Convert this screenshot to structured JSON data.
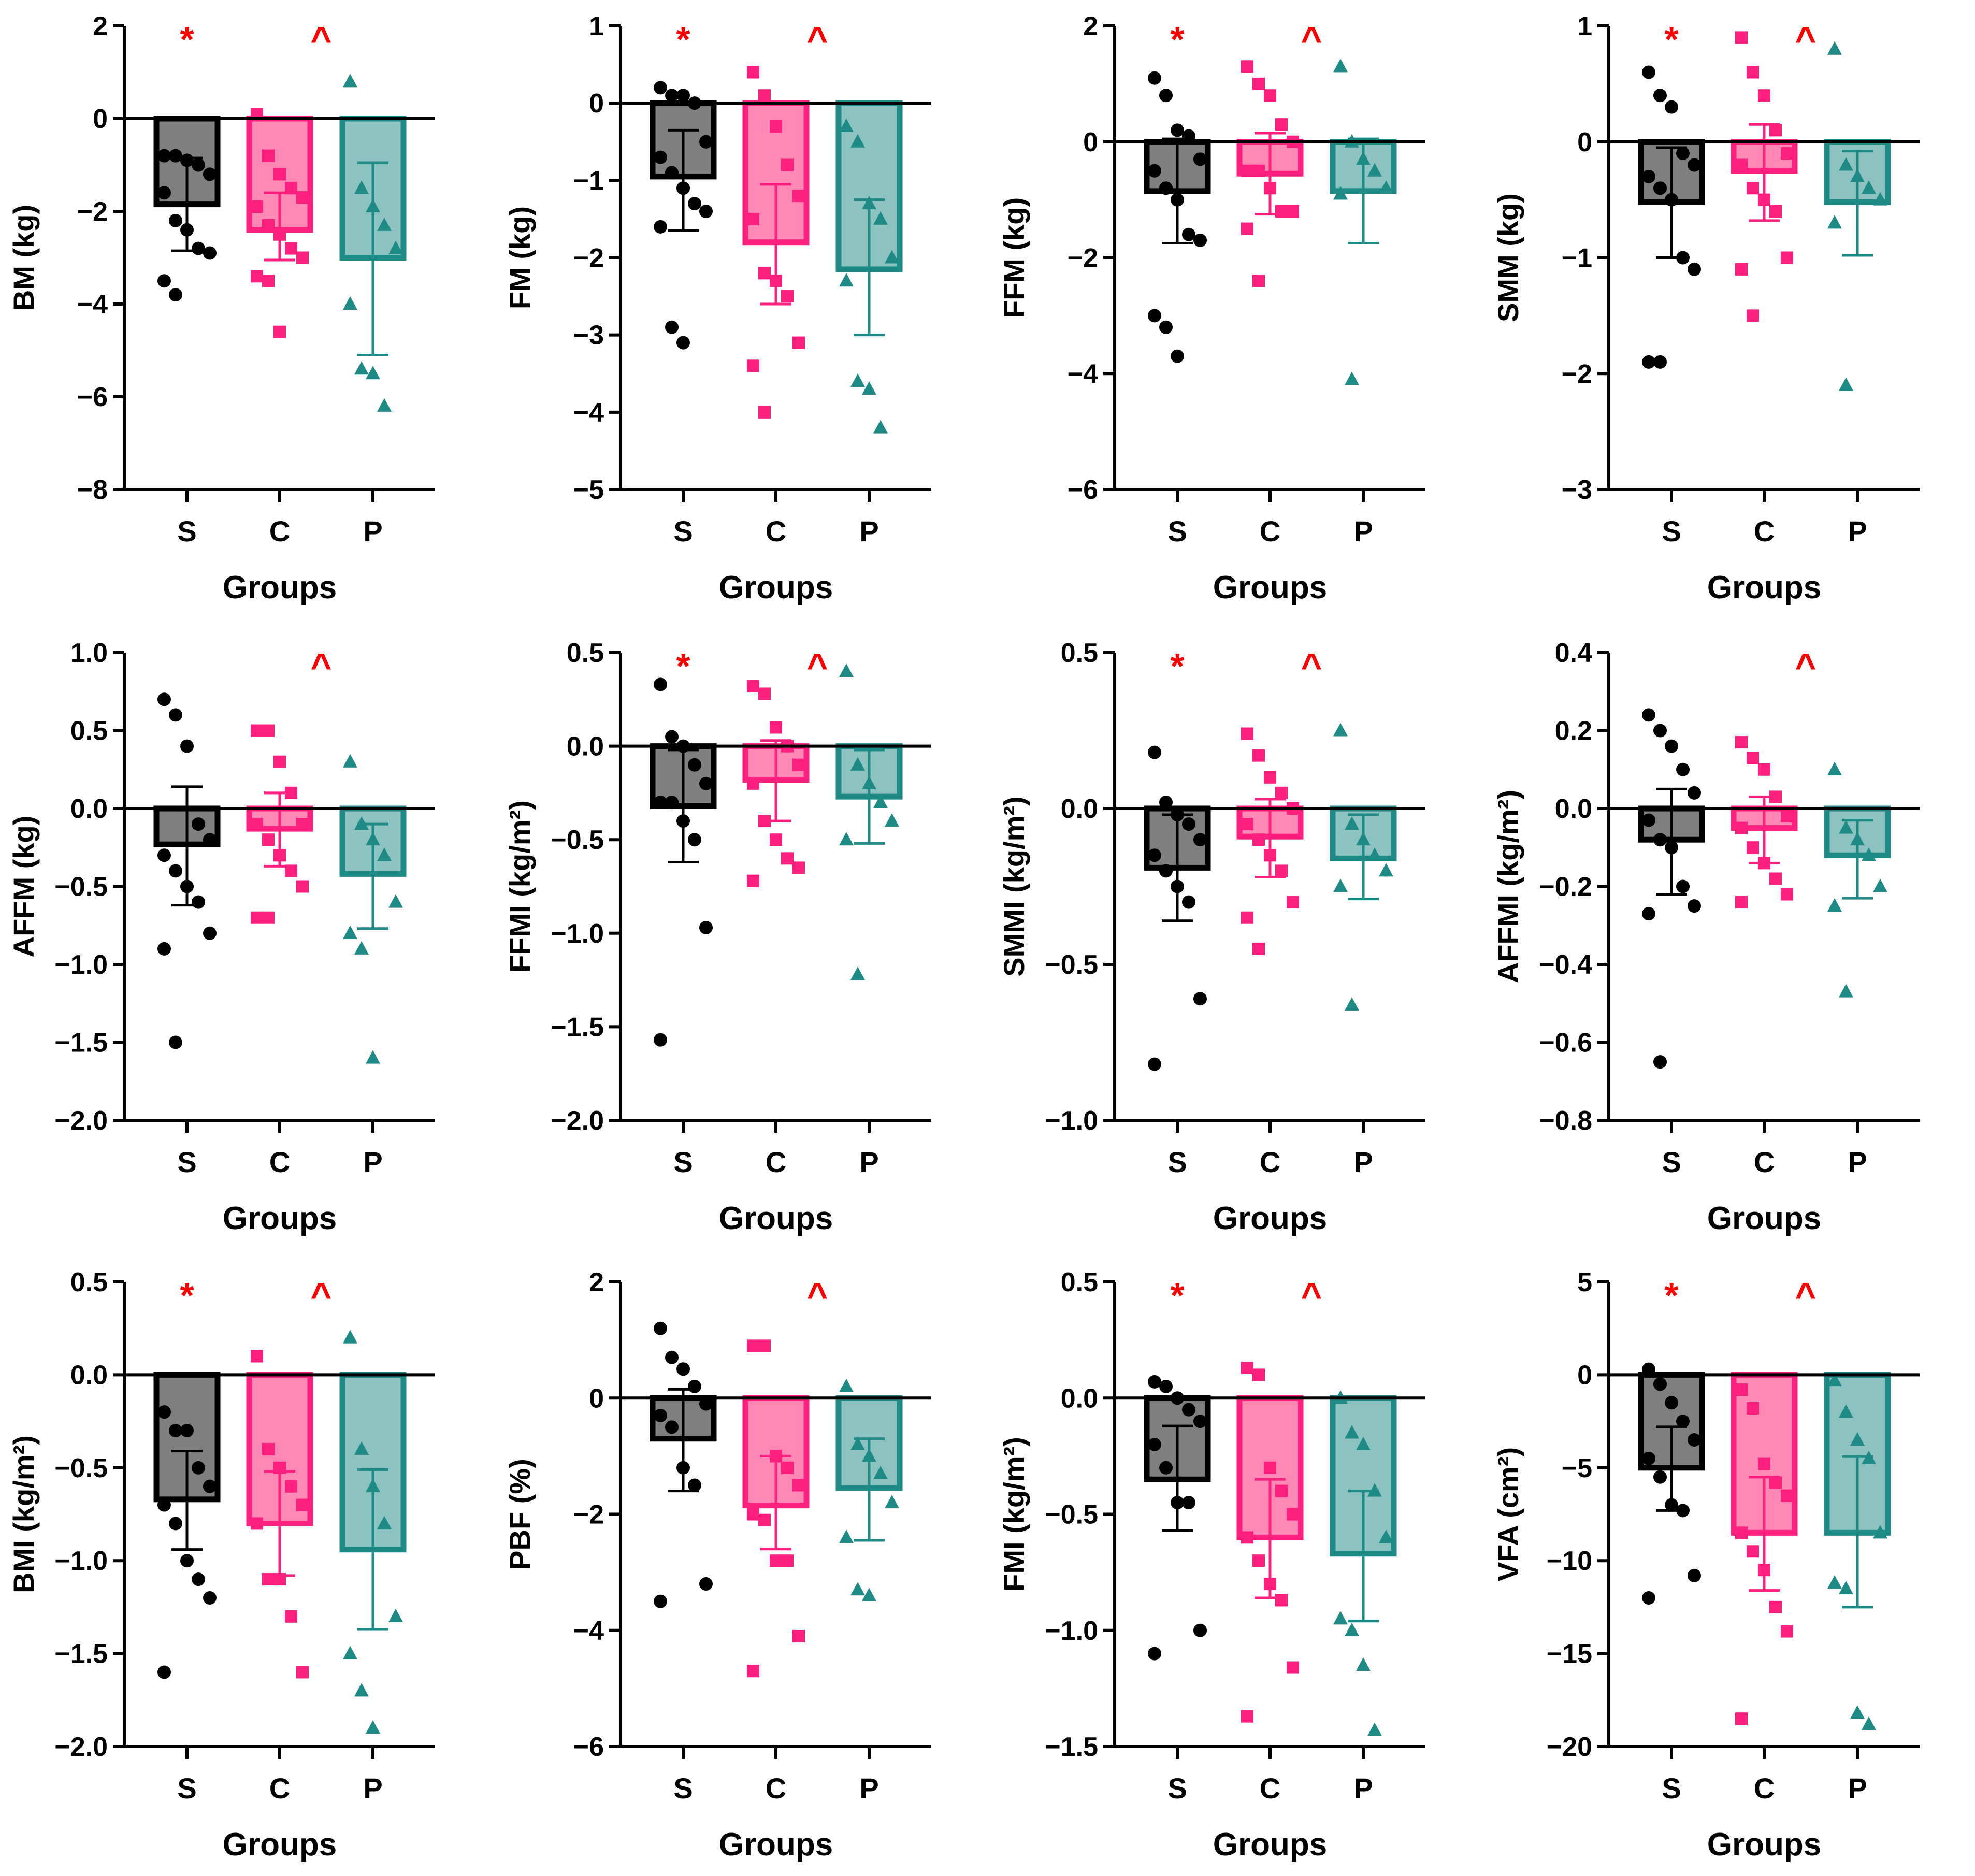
{
  "figure": {
    "groups": [
      "S",
      "C",
      "P"
    ],
    "xlabel": "Groups",
    "group_colors": {
      "S": "#000000",
      "C": "#ff1f7f",
      "P": "#1d8a86"
    },
    "bar_fills": {
      "S": "#7f7f7f",
      "C": "#ff88b5",
      "P": "#8cc2bf"
    },
    "marker_color": "#ff0000",
    "point_shapes": {
      "S": "circle",
      "C": "square",
      "P": "triangle"
    }
  },
  "chart_data": [
    {
      "type": "bar",
      "ylabel": "BM (kg)",
      "categories": [
        "S",
        "C",
        "P"
      ],
      "means": [
        -1.85,
        -2.4,
        -3.0
      ],
      "error_bars": [
        [
          -2.85,
          -0.85
        ],
        [
          -3.05,
          -1.6
        ],
        [
          -5.1,
          -0.95
        ]
      ],
      "points": [
        [
          -0.8,
          -0.8,
          -0.9,
          -1.0,
          -1.2,
          -1.6,
          -2.2,
          -2.4,
          -2.8,
          -2.9,
          -3.5,
          -3.8
        ],
        [
          0.1,
          -0.8,
          -1.2,
          -1.5,
          -1.7,
          -1.9,
          -2.3,
          -2.5,
          -2.8,
          -3.0,
          -3.4,
          -3.5,
          -4.6
        ],
        [
          0.8,
          -1.5,
          -1.9,
          -2.3,
          -2.8,
          -4.0,
          -5.4,
          -5.5,
          -6.2
        ]
      ],
      "ylim": [
        -8,
        2
      ],
      "yticks": [
        2,
        0,
        -2,
        -4,
        -6,
        -8
      ],
      "ytick_labels": [
        "2",
        "0",
        "−2",
        "−4",
        "−6",
        "−8"
      ],
      "markers": [
        "*",
        "^"
      ]
    },
    {
      "type": "bar",
      "ylabel": "FM (kg)",
      "categories": [
        "S",
        "C",
        "P"
      ],
      "means": [
        -0.95,
        -1.8,
        -2.15
      ],
      "error_bars": [
        [
          -1.65,
          -0.35
        ],
        [
          -2.6,
          -1.05
        ],
        [
          -3.0,
          -1.25
        ]
      ],
      "points": [
        [
          0.2,
          0.1,
          0.1,
          0.0,
          -0.5,
          -0.7,
          -0.9,
          -1.1,
          -1.3,
          -1.4,
          -1.6,
          -2.9,
          -3.1
        ],
        [
          0.4,
          0.1,
          -0.3,
          -0.8,
          -1.2,
          -1.5,
          -2.2,
          -2.3,
          -2.5,
          -3.1,
          -3.4,
          -4.0
        ],
        [
          -0.3,
          -0.5,
          -1.3,
          -1.5,
          -2.0,
          -2.3,
          -3.6,
          -3.7,
          -4.2
        ]
      ],
      "ylim": [
        -5,
        1
      ],
      "yticks": [
        1,
        0,
        -1,
        -2,
        -3,
        -4,
        -5
      ],
      "ytick_labels": [
        "1",
        "0",
        "−1",
        "−2",
        "−3",
        "−4",
        "−5"
      ],
      "markers": [
        "*",
        "^"
      ]
    },
    {
      "type": "bar",
      "ylabel": "FFM (kg)",
      "categories": [
        "S",
        "C",
        "P"
      ],
      "means": [
        -0.85,
        -0.55,
        -0.85
      ],
      "error_bars": [
        [
          -1.75,
          0.05
        ],
        [
          -1.25,
          0.15
        ],
        [
          -1.75,
          0.05
        ]
      ],
      "points": [
        [
          1.1,
          0.8,
          0.2,
          0.1,
          -0.3,
          -0.5,
          -0.8,
          -1.0,
          -1.6,
          -1.7,
          -3.0,
          -3.2,
          -3.7
        ],
        [
          1.3,
          1.0,
          0.8,
          0.3,
          0.0,
          -0.5,
          -0.5,
          -0.8,
          -1.2,
          -1.2,
          -1.5,
          -2.4
        ],
        [
          1.3,
          0.0,
          -0.3,
          -0.5,
          -0.8,
          -0.9,
          -4.1
        ]
      ],
      "ylim": [
        -6,
        2
      ],
      "yticks": [
        2,
        0,
        -2,
        -4,
        -6
      ],
      "ytick_labels": [
        "2",
        "0",
        "−2",
        "−4",
        "−6"
      ],
      "markers": [
        "*",
        "^"
      ]
    },
    {
      "type": "bar",
      "ylabel": "SMM (kg)",
      "categories": [
        "S",
        "C",
        "P"
      ],
      "means": [
        -0.52,
        -0.25,
        -0.52
      ],
      "error_bars": [
        [
          -1.0,
          -0.05
        ],
        [
          -0.68,
          0.15
        ],
        [
          -0.98,
          -0.08
        ]
      ],
      "points": [
        [
          0.6,
          0.4,
          0.3,
          -0.1,
          -0.2,
          -0.3,
          -0.4,
          -0.5,
          -1.0,
          -1.1,
          -1.9,
          -1.9
        ],
        [
          0.9,
          0.6,
          0.4,
          0.1,
          -0.1,
          -0.2,
          -0.4,
          -0.5,
          -0.6,
          -1.0,
          -1.1,
          -1.5
        ],
        [
          0.8,
          -0.2,
          -0.3,
          -0.4,
          -0.5,
          -0.7,
          -2.1
        ]
      ],
      "ylim": [
        -3,
        1
      ],
      "yticks": [
        1,
        0,
        -1,
        -2,
        -3
      ],
      "ytick_labels": [
        "1",
        "0",
        "−1",
        "−2",
        "−3"
      ],
      "markers": [
        "*",
        "^"
      ]
    },
    {
      "type": "bar",
      "ylabel": "AFFM (kg)",
      "categories": [
        "S",
        "C",
        "P"
      ],
      "means": [
        -0.23,
        -0.13,
        -0.42
      ],
      "error_bars": [
        [
          -0.62,
          0.14
        ],
        [
          -0.37,
          0.1
        ],
        [
          -0.77,
          -0.1
        ]
      ],
      "points": [
        [
          0.7,
          0.6,
          0.4,
          -0.1,
          -0.2,
          -0.3,
          -0.4,
          -0.5,
          -0.6,
          -0.8,
          -0.9,
          -1.5
        ],
        [
          0.5,
          0.5,
          0.3,
          0.1,
          -0.1,
          -0.1,
          -0.2,
          -0.3,
          -0.4,
          -0.5,
          -0.7,
          -0.7
        ],
        [
          0.3,
          -0.1,
          -0.2,
          -0.3,
          -0.6,
          -0.8,
          -0.9,
          -1.6
        ]
      ],
      "ylim": [
        -2.0,
        1.0
      ],
      "yticks": [
        1.0,
        0.5,
        0.0,
        -0.5,
        -1.0,
        -1.5,
        -2.0
      ],
      "ytick_labels": [
        "1.0",
        "0.5",
        "0.0",
        "−0.5",
        "−1.0",
        "−1.5",
        "−2.0"
      ],
      "markers": [
        "",
        "^"
      ]
    },
    {
      "type": "bar",
      "ylabel": "FFMI (kg/m²)",
      "categories": [
        "S",
        "C",
        "P"
      ],
      "means": [
        -0.32,
        -0.18,
        -0.27
      ],
      "error_bars": [
        [
          -0.62,
          -0.02
        ],
        [
          -0.4,
          0.03
        ],
        [
          -0.52,
          -0.02
        ]
      ],
      "points": [
        [
          0.33,
          0.05,
          0.0,
          -0.1,
          -0.2,
          -0.3,
          -0.3,
          -0.4,
          -0.5,
          -0.97,
          -1.57
        ],
        [
          0.32,
          0.28,
          0.1,
          0.0,
          -0.1,
          -0.2,
          -0.4,
          -0.5,
          -0.6,
          -0.65,
          -0.72
        ],
        [
          0.4,
          -0.1,
          -0.2,
          -0.3,
          -0.4,
          -0.5,
          -1.22
        ]
      ],
      "ylim": [
        -2.0,
        0.5
      ],
      "yticks": [
        0.5,
        0.0,
        -0.5,
        -1.0,
        -1.5,
        -2.0
      ],
      "ytick_labels": [
        "0.5",
        "0.0",
        "−0.5",
        "−1.0",
        "−1.5",
        "−2.0"
      ],
      "markers": [
        "*",
        "^"
      ]
    },
    {
      "type": "bar",
      "ylabel": "SMMI (kg/m²)",
      "categories": [
        "S",
        "C",
        "P"
      ],
      "means": [
        -0.19,
        -0.09,
        -0.16
      ],
      "error_bars": [
        [
          -0.36,
          -0.02
        ],
        [
          -0.22,
          0.03
        ],
        [
          -0.29,
          -0.02
        ]
      ],
      "points": [
        [
          0.18,
          0.02,
          -0.02,
          -0.05,
          -0.1,
          -0.15,
          -0.2,
          -0.25,
          -0.3,
          -0.61,
          -0.82
        ],
        [
          0.24,
          0.17,
          0.1,
          0.05,
          0.0,
          -0.05,
          -0.1,
          -0.15,
          -0.2,
          -0.3,
          -0.35,
          -0.45
        ],
        [
          0.25,
          -0.05,
          -0.1,
          -0.15,
          -0.2,
          -0.25,
          -0.63
        ]
      ],
      "ylim": [
        -1.0,
        0.5
      ],
      "yticks": [
        0.5,
        0.0,
        -0.5,
        -1.0
      ],
      "ytick_labels": [
        "0.5",
        "0.0",
        "−0.5",
        "−1.0"
      ],
      "markers": [
        "*",
        "^"
      ]
    },
    {
      "type": "bar",
      "ylabel": "AFFMI (kg/m²)",
      "categories": [
        "S",
        "C",
        "P"
      ],
      "means": [
        -0.08,
        -0.05,
        -0.12
      ],
      "error_bars": [
        [
          -0.22,
          0.05
        ],
        [
          -0.14,
          0.03
        ],
        [
          -0.23,
          -0.03
        ]
      ],
      "points": [
        [
          0.24,
          0.2,
          0.16,
          0.1,
          0.04,
          -0.03,
          -0.08,
          -0.1,
          -0.2,
          -0.25,
          -0.27,
          -0.65
        ],
        [
          0.17,
          0.13,
          0.1,
          0.03,
          -0.02,
          -0.05,
          -0.1,
          -0.14,
          -0.18,
          -0.22,
          -0.24
        ],
        [
          0.1,
          -0.05,
          -0.08,
          -0.12,
          -0.2,
          -0.25,
          -0.47
        ]
      ],
      "ylim": [
        -0.8,
        0.4
      ],
      "yticks": [
        0.4,
        0.2,
        0.0,
        -0.2,
        -0.4,
        -0.6,
        -0.8
      ],
      "ytick_labels": [
        "0.4",
        "0.2",
        "0.0",
        "−0.2",
        "−0.4",
        "−0.6",
        "−0.8"
      ],
      "markers": [
        "",
        "^"
      ]
    },
    {
      "type": "bar",
      "ylabel": "BMI (kg/m²)",
      "categories": [
        "S",
        "C",
        "P"
      ],
      "means": [
        -0.67,
        -0.8,
        -0.94
      ],
      "error_bars": [
        [
          -0.94,
          -0.41
        ],
        [
          -1.08,
          -0.52
        ],
        [
          -1.37,
          -0.51
        ]
      ],
      "points": [
        [
          -0.2,
          -0.3,
          -0.3,
          -0.5,
          -0.6,
          -0.7,
          -0.8,
          -1.0,
          -1.1,
          -1.2,
          -1.6
        ],
        [
          0.1,
          -0.4,
          -0.5,
          -0.6,
          -0.7,
          -0.8,
          -1.1,
          -1.1,
          -1.3,
          -1.6
        ],
        [
          0.2,
          -0.4,
          -0.6,
          -0.8,
          -1.3,
          -1.5,
          -1.7,
          -1.9
        ]
      ],
      "ylim": [
        -2.0,
        0.5
      ],
      "yticks": [
        0.5,
        0.0,
        -0.5,
        -1.0,
        -1.5,
        -2.0
      ],
      "ytick_labels": [
        "0.5",
        "0.0",
        "−0.5",
        "−1.0",
        "−1.5",
        "−2.0"
      ],
      "markers": [
        "*",
        "^"
      ]
    },
    {
      "type": "bar",
      "ylabel": "PBF (%)",
      "categories": [
        "S",
        "C",
        "P"
      ],
      "means": [
        -0.7,
        -1.85,
        -1.55
      ],
      "error_bars": [
        [
          -1.6,
          0.15
        ],
        [
          -2.6,
          -1.0
        ],
        [
          -2.45,
          -0.7
        ]
      ],
      "points": [
        [
          1.2,
          0.7,
          0.5,
          0.2,
          -0.1,
          -0.3,
          -0.5,
          -1.2,
          -1.5,
          -3.2,
          -3.5
        ],
        [
          0.9,
          0.9,
          -1.0,
          -1.2,
          -1.5,
          -2.0,
          -2.1,
          -2.8,
          -2.8,
          -4.1,
          -4.7
        ],
        [
          0.2,
          -0.8,
          -1.0,
          -1.3,
          -1.8,
          -2.4,
          -3.3,
          -3.4
        ]
      ],
      "ylim": [
        -6,
        2
      ],
      "yticks": [
        2,
        0,
        -2,
        -4,
        -6
      ],
      "ytick_labels": [
        "2",
        "0",
        "−2",
        "−4",
        "−6"
      ],
      "markers": [
        "",
        "^"
      ]
    },
    {
      "type": "bar",
      "ylabel": "FMI (kg/m²)",
      "categories": [
        "S",
        "C",
        "P"
      ],
      "means": [
        -0.35,
        -0.6,
        -0.67
      ],
      "error_bars": [
        [
          -0.57,
          -0.12
        ],
        [
          -0.86,
          -0.35
        ],
        [
          -0.96,
          -0.4
        ]
      ],
      "points": [
        [
          0.07,
          0.05,
          0.0,
          -0.05,
          -0.1,
          -0.2,
          -0.3,
          -0.45,
          -0.45,
          -1.0,
          -1.1
        ],
        [
          0.13,
          0.1,
          -0.3,
          -0.4,
          -0.5,
          -0.6,
          -0.7,
          -0.8,
          -0.87,
          -1.16,
          -1.37
        ],
        [
          0.0,
          -0.15,
          -0.2,
          -0.4,
          -0.6,
          -0.95,
          -1.0,
          -1.15,
          -1.43
        ]
      ],
      "ylim": [
        -1.5,
        0.5
      ],
      "yticks": [
        0.5,
        0.0,
        -0.5,
        -1.0,
        -1.5
      ],
      "ytick_labels": [
        "0.5",
        "0.0",
        "−0.5",
        "−1.0",
        "−1.5"
      ],
      "markers": [
        "*",
        "^"
      ]
    },
    {
      "type": "bar",
      "ylabel": "VFA (cm²)",
      "categories": [
        "S",
        "C",
        "P"
      ],
      "means": [
        -5.0,
        -8.5,
        -8.5
      ],
      "error_bars": [
        [
          -7.3,
          -2.8
        ],
        [
          -11.6,
          -5.5
        ],
        [
          -12.5,
          -4.4
        ]
      ],
      "points": [
        [
          0.3,
          -0.5,
          -1.5,
          -2.5,
          -3.5,
          -4.5,
          -5.5,
          -7.0,
          -7.3,
          -10.8,
          -12.0
        ],
        [
          -0.8,
          -1.8,
          -4.8,
          -5.8,
          -6.5,
          -8.5,
          -9.5,
          -10.5,
          -12.5,
          -13.8,
          -18.5
        ],
        [
          -0.3,
          -2.0,
          -3.5,
          -4.5,
          -8.5,
          -11.2,
          -11.5,
          -18.2,
          -18.8
        ]
      ],
      "ylim": [
        -20,
        5
      ],
      "yticks": [
        5,
        0,
        -5,
        -10,
        -15,
        -20
      ],
      "ytick_labels": [
        "5",
        "0",
        "−5",
        "−10",
        "−15",
        "−20"
      ],
      "markers": [
        "*",
        "^"
      ]
    }
  ]
}
